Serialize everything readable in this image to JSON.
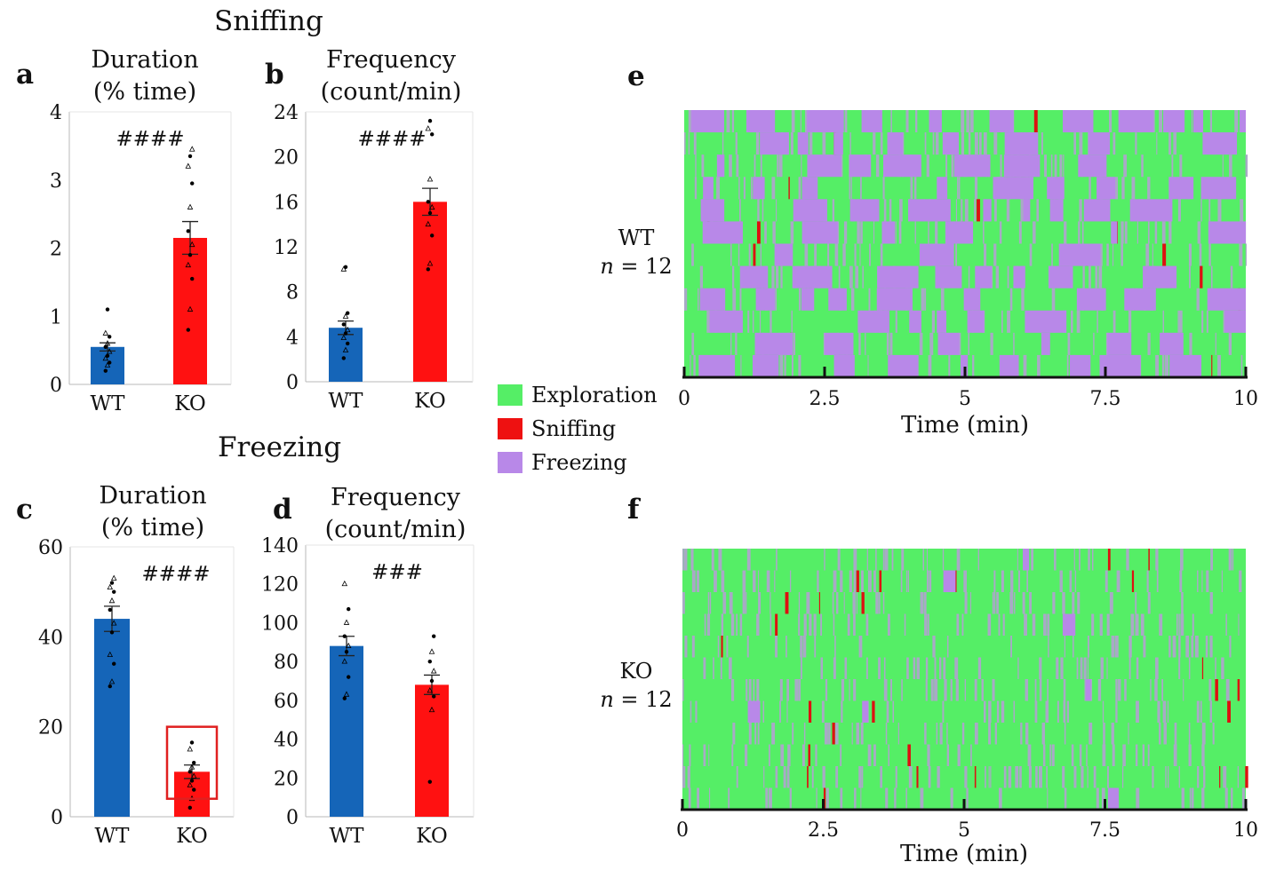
{
  "sections": {
    "sniffing": "Sniffing",
    "freezing": "Freezing"
  },
  "panel_letters": {
    "a": "a",
    "b": "b",
    "c": "c",
    "d": "d",
    "e": "e",
    "f": "f"
  },
  "legend": [
    {
      "label": "Exploration",
      "color": "#55ee66"
    },
    {
      "label": "Sniffing",
      "color": "#ee1111"
    },
    {
      "label": "Freezing",
      "color": "#b888e8"
    }
  ],
  "colors": {
    "wt_bar": "#1565b8",
    "ko_bar": "#ff1111",
    "highlight_box": "#e02020",
    "raster_red": "#dd1111",
    "raster_gray": "#a9a9c6"
  },
  "chart_data": [
    {
      "id": "a",
      "type": "bar",
      "title_line1": "Duration",
      "title_line2": "(% time)",
      "categories": [
        "WT",
        "KO"
      ],
      "values": [
        0.55,
        2.15
      ],
      "errors": [
        0.06,
        0.24
      ],
      "ylim": [
        0,
        4
      ],
      "yticks": [
        "0",
        "1",
        "2",
        "3",
        "4"
      ],
      "significance": "####",
      "points": [
        [
          0.2,
          0.28,
          0.32,
          0.38,
          0.42,
          0.48,
          0.55,
          0.6,
          0.7,
          0.75,
          1.1
        ],
        [
          0.8,
          1.1,
          1.55,
          1.75,
          1.9,
          2.05,
          2.25,
          2.6,
          2.95,
          3.2,
          3.35,
          3.45
        ]
      ]
    },
    {
      "id": "b",
      "type": "bar",
      "title_line1": "Frequency",
      "title_line2": "(count/min)",
      "categories": [
        "WT",
        "KO"
      ],
      "values": [
        4.8,
        16
      ],
      "errors": [
        0.6,
        1.2
      ],
      "ylim": [
        0,
        24
      ],
      "yticks": [
        "0",
        "4",
        "8",
        "12",
        "16",
        "20",
        "24"
      ],
      "significance": "####",
      "points": [
        [
          2.1,
          2.8,
          3.4,
          3.9,
          4.3,
          4.6,
          5.1,
          5.8,
          6.1,
          10,
          10.2
        ],
        [
          10,
          10.5,
          13,
          14,
          15,
          15.5,
          16,
          18,
          22,
          22.5,
          23.2
        ]
      ]
    },
    {
      "id": "c",
      "type": "bar",
      "title_line1": "Duration",
      "title_line2": "(% time)",
      "categories": [
        "WT",
        "KO"
      ],
      "values": [
        44,
        10
      ],
      "errors": [
        2.8,
        1.5
      ],
      "ylim": [
        0,
        60
      ],
      "yticks": [
        "0",
        "20",
        "40",
        "60"
      ],
      "significance": "####",
      "points": [
        [
          29,
          30,
          34,
          36,
          41,
          43,
          46,
          48,
          50,
          51,
          52,
          53
        ],
        [
          2,
          4,
          6,
          7,
          8,
          9,
          10,
          11,
          12,
          15,
          16.5
        ]
      ],
      "highlight": {
        "ymin": 4,
        "ymax": 20
      }
    },
    {
      "id": "d",
      "type": "bar",
      "title_line1": "Frequency",
      "title_line2": "(count/min)",
      "categories": [
        "WT",
        "KO"
      ],
      "values": [
        88,
        68
      ],
      "errors": [
        5,
        5
      ],
      "ylim": [
        0,
        140
      ],
      "yticks": [
        "0",
        "20",
        "40",
        "60",
        "80",
        "100",
        "120",
        "140"
      ],
      "significance": "###",
      "points": [
        [
          61,
          63,
          72,
          80,
          85,
          88,
          93,
          100,
          107,
          120
        ],
        [
          18,
          55,
          62,
          65,
          70,
          75,
          80,
          85,
          93
        ]
      ]
    },
    {
      "id": "e",
      "type": "raster",
      "group": "WT",
      "n_label": "n",
      "n_text": " = 12",
      "xlabel": "Time  (min)",
      "xticks": [
        "0",
        "2.5",
        "5",
        "7.5",
        "10"
      ],
      "xlim": [
        0,
        10
      ],
      "rows": 12,
      "seed": 7,
      "freezing_fraction": 0.42,
      "sniff_fraction": 0.04
    },
    {
      "id": "f",
      "type": "raster",
      "group": "KO",
      "n_label": "n",
      "n_text": " = 12",
      "xlabel": "Time  (min)",
      "xticks": [
        "0",
        "2.5",
        "5",
        "7.5",
        "10"
      ],
      "xlim": [
        0,
        10
      ],
      "rows": 12,
      "seed": 31,
      "freezing_fraction": 0.02,
      "sniff_fraction": 0.05
    }
  ]
}
